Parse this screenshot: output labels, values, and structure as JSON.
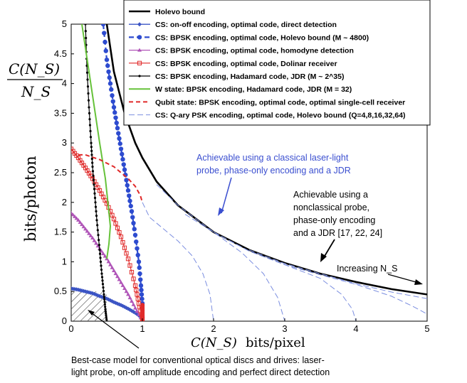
{
  "chart_data": {
    "type": "line",
    "xlabel": "bits/pixel",
    "xlabel_math": "C(N_S)",
    "ylabel": "bits/photon",
    "ylabel_math_num": "C(N_S)",
    "ylabel_math_den": "N_S",
    "xlim": [
      0,
      5
    ],
    "ylim": [
      0,
      5
    ],
    "x_ticks": [
      "0",
      "1",
      "2",
      "3",
      "4",
      "5"
    ],
    "y_ticks": [
      "0",
      "0.5",
      "1",
      "1.5",
      "2",
      "2.5",
      "3",
      "3.5",
      "4",
      "4.5",
      "5"
    ],
    "series": [
      {
        "name": "Holevo bound",
        "color": "#000000",
        "x": [
          0.5,
          0.6,
          0.75,
          0.9,
          1.0,
          1.2,
          1.5,
          2.0,
          2.5,
          3.0,
          3.5,
          4.0,
          4.5,
          5.0
        ],
        "y": [
          5.0,
          4.2,
          3.5,
          3.0,
          2.75,
          2.35,
          1.95,
          1.5,
          1.2,
          0.98,
          0.8,
          0.66,
          0.54,
          0.45
        ]
      },
      {
        "name": "CS: on-off encoding, optimal code, direct detection",
        "color": "#3b54c4",
        "x": [
          0.0,
          0.1,
          0.2,
          0.3,
          0.4,
          0.5,
          0.6,
          0.7,
          0.8,
          0.9,
          1.0
        ],
        "y": [
          0.55,
          0.53,
          0.5,
          0.47,
          0.42,
          0.38,
          0.32,
          0.27,
          0.21,
          0.14,
          0.05
        ]
      },
      {
        "name": "CS: BPSK encoding, optimal code, Holevo bound (M ~ 4800)",
        "color": "#2d4bcf",
        "x": [
          0.45,
          0.5,
          0.55,
          0.6,
          0.65,
          0.7,
          0.75,
          0.8,
          0.85,
          0.9,
          0.95,
          0.98,
          1.0
        ],
        "y": [
          5.0,
          4.4,
          4.0,
          3.6,
          3.25,
          2.9,
          2.55,
          2.2,
          1.85,
          1.45,
          1.0,
          0.6,
          0.3
        ]
      },
      {
        "name": "CS: BPSK encoding, optimal code, homodyne detection",
        "color": "#b055b8",
        "x": [
          0.0,
          0.1,
          0.2,
          0.3,
          0.4,
          0.5,
          0.6,
          0.7,
          0.8,
          0.9,
          1.0
        ],
        "y": [
          1.82,
          1.7,
          1.55,
          1.4,
          1.22,
          1.05,
          0.85,
          0.65,
          0.45,
          0.22,
          0.0
        ]
      },
      {
        "name": "CS: BPSK encoding, optimal code, Dolinar receiver",
        "color": "#e02a2a",
        "x": [
          0.0,
          0.1,
          0.2,
          0.3,
          0.4,
          0.5,
          0.6,
          0.7,
          0.8,
          0.9,
          0.95,
          1.0
        ],
        "y": [
          2.9,
          2.75,
          2.58,
          2.4,
          2.2,
          1.98,
          1.72,
          1.42,
          1.05,
          0.6,
          0.3,
          0.05
        ]
      },
      {
        "name": "CS: BPSK encoding, Hadamard code, JDR (M ~ 2^35)",
        "color": "#000000",
        "x": [
          0.2,
          0.22,
          0.25,
          0.28,
          0.3,
          0.33,
          0.36,
          0.4,
          0.43,
          0.46,
          0.48,
          0.5
        ],
        "y": [
          5.0,
          4.3,
          3.6,
          3.0,
          2.6,
          2.15,
          1.7,
          1.2,
          0.8,
          0.45,
          0.2,
          0.0
        ]
      },
      {
        "name": "W state: BPSK encoding, Hadamard code, JDR (M = 32)",
        "color": "#66c23a",
        "x": [
          0.15,
          0.2,
          0.3,
          0.4,
          0.48,
          0.52,
          0.55,
          0.53,
          0.5
        ],
        "y": [
          5.0,
          4.6,
          3.8,
          3.0,
          2.4,
          1.95,
          1.6,
          1.3,
          1.05
        ]
      },
      {
        "name": "Qubit state: BPSK encoding, optimal code, optimal single-cell receiver",
        "color": "#e02a2a",
        "x": [
          0.1,
          0.2,
          0.4,
          0.6,
          0.8,
          0.9,
          0.97,
          1.0
        ],
        "y": [
          2.8,
          2.8,
          2.72,
          2.6,
          2.4,
          2.27,
          2.12,
          2.0
        ]
      },
      {
        "name": "CS: Q-ary PSK encoding, optimal code, Holevo bound (Q=4,8,16,32,64)",
        "color": "#7b8ee0",
        "branches": [
          {
            "x": [
              1.0,
              1.1,
              1.3,
              1.5,
              1.7,
              1.85,
              1.95,
              2.0
            ],
            "y": [
              2.0,
              1.75,
              1.55,
              1.35,
              1.1,
              0.8,
              0.45,
              0.0
            ]
          },
          {
            "x": [
              1.2,
              1.5,
              2.0,
              2.4,
              2.7,
              2.9,
              3.0
            ],
            "y": [
              2.3,
              1.95,
              1.5,
              1.15,
              0.8,
              0.4,
              0.0
            ]
          },
          {
            "x": [
              1.6,
              2.0,
              2.5,
              3.0,
              3.5,
              3.8,
              3.95,
              4.0
            ],
            "y": [
              1.8,
              1.5,
              1.18,
              0.95,
              0.72,
              0.45,
              0.2,
              0.0
            ]
          },
          {
            "x": [
              2.0,
              2.5,
              3.0,
              3.5,
              4.0,
              4.5,
              4.8,
              5.0
            ],
            "y": [
              1.5,
              1.18,
              0.95,
              0.78,
              0.62,
              0.42,
              0.25,
              0.12
            ]
          },
          {
            "x": [
              2.5,
              3.0,
              3.5,
              4.0,
              4.5,
              5.0
            ],
            "y": [
              1.2,
              0.97,
              0.8,
              0.63,
              0.49,
              0.38
            ]
          }
        ]
      }
    ],
    "legend_position": "top-right",
    "annotations": [
      {
        "text_lines": [
          "Achievable using a classical laser-light",
          "probe, phase-only encoding and a JDR"
        ],
        "color": "#3b4fd0"
      },
      {
        "text_lines": [
          "Achievable using a",
          "nonclassical probe,",
          "phase-only encoding",
          "and a JDR [17, 22, 24]"
        ],
        "color": "#000000"
      },
      {
        "text": "Increasing N_S",
        "color": "#000000"
      },
      {
        "text_lines": [
          "Best-case model for conventional optical discs and drives: laser-",
          "light probe, on-off amplitude encoding and perfect direct detection"
        ],
        "color": "#000000"
      }
    ]
  }
}
